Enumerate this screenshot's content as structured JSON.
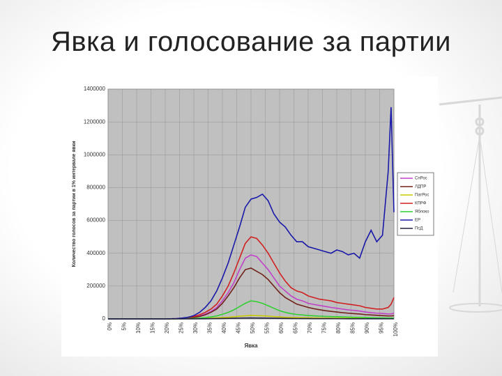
{
  "slide_title": "Явка и голосование за партии",
  "chart_data": {
    "type": "line",
    "x_label": "Явка",
    "y_label": "Количество голосов за партии в 1% интервале явки",
    "x": [
      0,
      2,
      4,
      6,
      8,
      10,
      12,
      14,
      16,
      18,
      20,
      22,
      24,
      26,
      28,
      30,
      32,
      34,
      36,
      38,
      40,
      42,
      44,
      46,
      48,
      50,
      52,
      54,
      56,
      58,
      60,
      62,
      64,
      66,
      68,
      70,
      72,
      74,
      76,
      78,
      80,
      82,
      84,
      86,
      88,
      90,
      92,
      94,
      96,
      98,
      99,
      100
    ],
    "xlim": [
      0,
      100
    ],
    "xticks": [
      {
        "value": 0,
        "label": "0%"
      },
      {
        "value": 5,
        "label": "5%"
      },
      {
        "value": 10,
        "label": "10%"
      },
      {
        "value": 15,
        "label": "15%"
      },
      {
        "value": 20,
        "label": "20%"
      },
      {
        "value": 25,
        "label": "25%"
      },
      {
        "value": 30,
        "label": "30%"
      },
      {
        "value": 35,
        "label": "35%"
      },
      {
        "value": 40,
        "label": "40%"
      },
      {
        "value": 45,
        "label": "45%"
      },
      {
        "value": 50,
        "label": "50%"
      },
      {
        "value": 55,
        "label": "55%"
      },
      {
        "value": 60,
        "label": "60%"
      },
      {
        "value": 65,
        "label": "65%"
      },
      {
        "value": 70,
        "label": "70%"
      },
      {
        "value": 75,
        "label": "75%"
      },
      {
        "value": 80,
        "label": "80%"
      },
      {
        "value": 85,
        "label": "85%"
      },
      {
        "value": 90,
        "label": "90%"
      },
      {
        "value": 95,
        "label": "95%"
      },
      {
        "value": 100,
        "label": "100%"
      }
    ],
    "ylim": [
      0,
      1400000
    ],
    "yticks": [
      0,
      200000,
      400000,
      600000,
      800000,
      1000000,
      1200000,
      1400000
    ],
    "grid": true,
    "legend": "right",
    "series": [
      {
        "name": "СпРос",
        "color": "#c040c8",
        "values": [
          0,
          0,
          0,
          0,
          0,
          0,
          0,
          0,
          0,
          0,
          0,
          500,
          1000,
          3000,
          6000,
          10000,
          18000,
          30000,
          45000,
          70000,
          110000,
          160000,
          220000,
          300000,
          370000,
          390000,
          380000,
          340000,
          300000,
          250000,
          200000,
          170000,
          140000,
          120000,
          110000,
          95000,
          88000,
          82000,
          76000,
          70000,
          65000,
          60000,
          55000,
          52000,
          48000,
          42000,
          38000,
          35000,
          33000,
          30000,
          30000,
          35000
        ]
      },
      {
        "name": "ЛДПР",
        "color": "#702018",
        "values": [
          0,
          0,
          0,
          0,
          0,
          0,
          0,
          0,
          0,
          0,
          0,
          500,
          1000,
          2500,
          5000,
          9000,
          15000,
          25000,
          40000,
          60000,
          95000,
          140000,
          190000,
          250000,
          300000,
          310000,
          290000,
          270000,
          240000,
          200000,
          160000,
          130000,
          110000,
          90000,
          80000,
          70000,
          62000,
          56000,
          50000,
          46000,
          42000,
          38000,
          35000,
          32000,
          30000,
          26000,
          24000,
          22000,
          20000,
          18000,
          18000,
          20000
        ]
      },
      {
        "name": "ПатРос",
        "color": "#c8c800",
        "values": [
          0,
          0,
          0,
          0,
          0,
          0,
          0,
          0,
          0,
          0,
          0,
          0,
          0,
          500,
          1000,
          1500,
          2000,
          3000,
          4000,
          6000,
          8000,
          10000,
          13000,
          16000,
          19000,
          21000,
          20000,
          19000,
          17000,
          14000,
          12000,
          10000,
          9000,
          8000,
          7000,
          6500,
          6000,
          5500,
          5000,
          4800,
          4500,
          4200,
          4000,
          3800,
          3500,
          3200,
          3000,
          2800,
          2600,
          2500,
          2500,
          2500
        ]
      },
      {
        "name": "КПРФ",
        "color": "#d02020",
        "values": [
          0,
          0,
          0,
          0,
          0,
          0,
          0,
          0,
          0,
          0,
          0,
          1000,
          2000,
          4000,
          8000,
          15000,
          25000,
          40000,
          60000,
          90000,
          140000,
          200000,
          280000,
          370000,
          460000,
          500000,
          490000,
          450000,
          400000,
          340000,
          280000,
          230000,
          190000,
          170000,
          160000,
          140000,
          130000,
          120000,
          115000,
          110000,
          100000,
          95000,
          90000,
          85000,
          80000,
          70000,
          65000,
          60000,
          60000,
          70000,
          90000,
          130000
        ]
      },
      {
        "name": "Яблоко",
        "color": "#30d030",
        "values": [
          0,
          0,
          0,
          0,
          0,
          0,
          0,
          0,
          0,
          0,
          0,
          0,
          500,
          1000,
          2000,
          3000,
          5000,
          8000,
          12000,
          18000,
          28000,
          40000,
          55000,
          75000,
          95000,
          110000,
          105000,
          95000,
          80000,
          65000,
          50000,
          40000,
          32000,
          27000,
          24000,
          21000,
          19000,
          17000,
          15000,
          14000,
          13000,
          12000,
          11000,
          10000,
          9000,
          8000,
          7000,
          6000,
          6000,
          5000,
          5000,
          5000
        ]
      },
      {
        "name": "ЕР",
        "color": "#1818a8",
        "values": [
          0,
          0,
          0,
          0,
          0,
          0,
          0,
          0,
          0,
          0,
          0,
          1000,
          2000,
          5000,
          10000,
          20000,
          40000,
          70000,
          110000,
          170000,
          250000,
          340000,
          450000,
          560000,
          680000,
          730000,
          740000,
          760000,
          720000,
          640000,
          590000,
          560000,
          510000,
          470000,
          470000,
          440000,
          430000,
          420000,
          410000,
          400000,
          420000,
          410000,
          390000,
          400000,
          370000,
          470000,
          540000,
          470000,
          510000,
          900000,
          1290000,
          650000
        ]
      },
      {
        "name": "ПсД",
        "color": "#202040",
        "values": [
          0,
          0,
          0,
          0,
          0,
          0,
          0,
          0,
          0,
          0,
          0,
          0,
          0,
          100,
          200,
          400,
          600,
          900,
          1300,
          1800,
          2500,
          3200,
          4000,
          4800,
          5300,
          5500,
          5300,
          5000,
          4500,
          3900,
          3300,
          2800,
          2400,
          2100,
          1900,
          1700,
          1500,
          1400,
          1300,
          1200,
          1100,
          1000,
          900,
          850,
          800,
          750,
          700,
          650,
          600,
          550,
          500,
          500
        ]
      }
    ]
  }
}
